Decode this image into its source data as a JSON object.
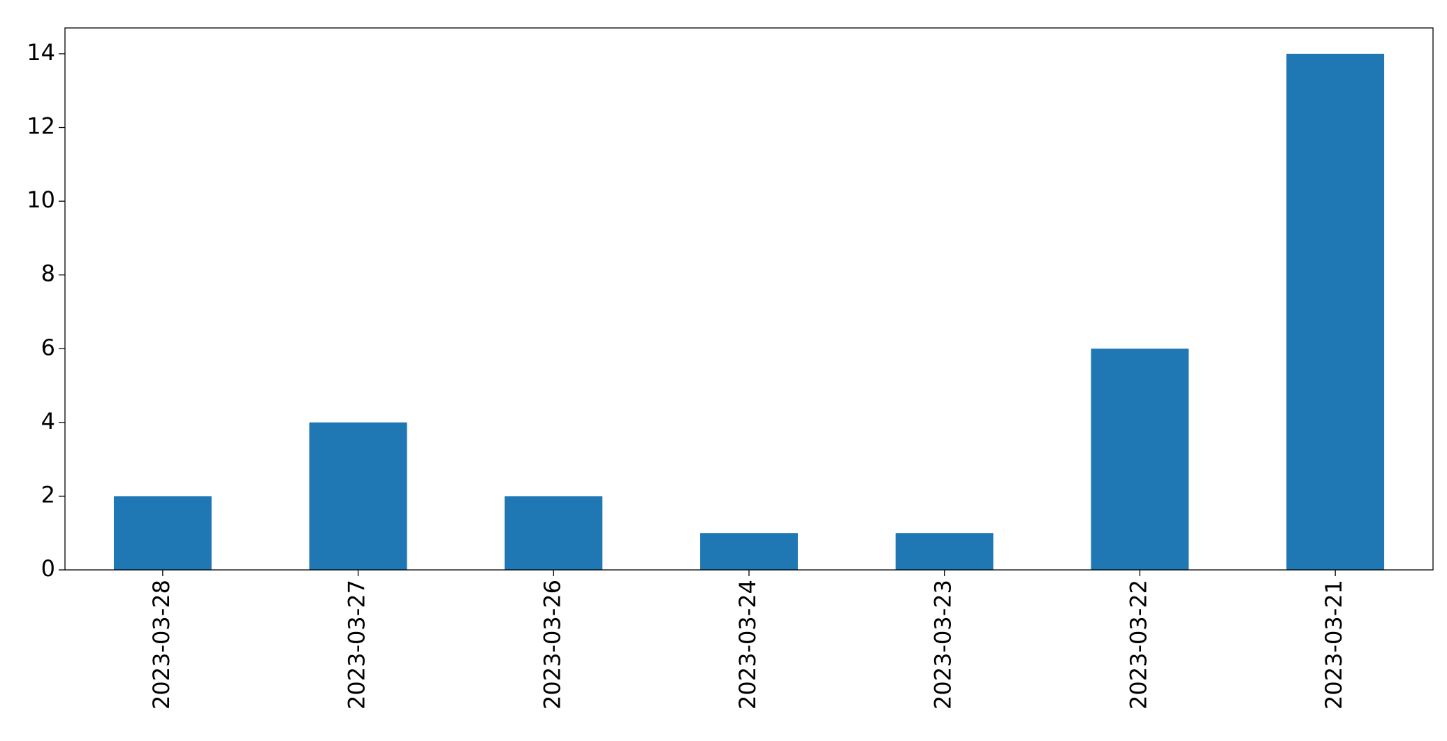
{
  "chart_data": {
    "type": "bar",
    "categories": [
      "2023-03-28",
      "2023-03-27",
      "2023-03-26",
      "2023-03-24",
      "2023-03-23",
      "2023-03-22",
      "2023-03-21"
    ],
    "values": [
      2,
      4,
      2,
      1,
      1,
      6,
      14
    ],
    "color": "#1f77b4",
    "ylim": [
      0,
      14.7
    ],
    "yticks": [
      0,
      2,
      4,
      6,
      8,
      10,
      12,
      14
    ],
    "grid": false
  }
}
